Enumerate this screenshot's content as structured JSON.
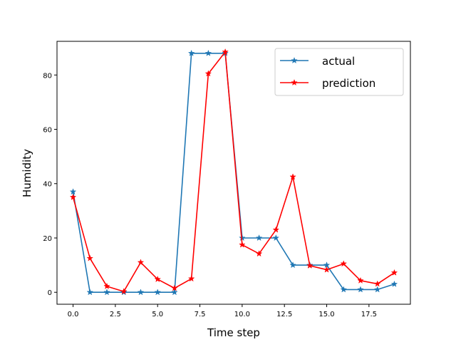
{
  "chart_data": {
    "type": "line",
    "title": "",
    "xlabel": "Time step",
    "ylabel": "Humidity",
    "xlim": [
      -0.95,
      19.95
    ],
    "ylim": [
      -4.4,
      92.4
    ],
    "xticks": [
      0.0,
      2.5,
      5.0,
      7.5,
      10.0,
      12.5,
      15.0,
      17.5
    ],
    "xtick_labels": [
      "0.0",
      "2.5",
      "5.0",
      "7.5",
      "10.0",
      "12.5",
      "15.0",
      "17.5"
    ],
    "yticks": [
      0,
      20,
      40,
      60,
      80
    ],
    "ytick_labels": [
      "0",
      "20",
      "40",
      "60",
      "80"
    ],
    "grid": false,
    "legend_position": "top-right",
    "x": [
      0,
      1,
      2,
      3,
      4,
      5,
      6,
      7,
      8,
      9,
      10,
      11,
      12,
      13,
      14,
      15,
      16,
      17,
      18,
      19
    ],
    "series": [
      {
        "name": "actual",
        "color": "#1f77b4",
        "marker": "star",
        "values": [
          37,
          0,
          0,
          0,
          0,
          0,
          0,
          88,
          88,
          88,
          20,
          20,
          20,
          10,
          10,
          10,
          1,
          1,
          1,
          3
        ]
      },
      {
        "name": "prediction",
        "color": "#ff0000",
        "marker": "star",
        "values": [
          35,
          12.5,
          2.2,
          0.3,
          11,
          4.8,
          1.5,
          5,
          80.5,
          88.5,
          17.5,
          14.2,
          23,
          42.5,
          9.8,
          8.3,
          10.5,
          4.3,
          3.1,
          7.2
        ]
      }
    ]
  }
}
